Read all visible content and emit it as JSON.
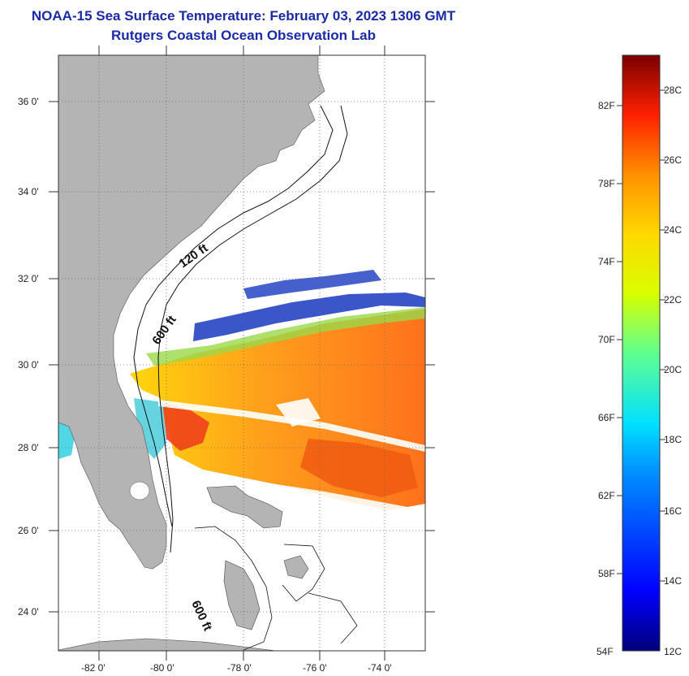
{
  "title": "NOAA-15 Sea Surface Temperature:  February 03, 2023 1306 GMT",
  "subtitle": "Rutgers Coastal Ocean Observation Lab",
  "map": {
    "lon_labels": [
      "-82 0'",
      "-80 0'",
      "-78 0'",
      "-76 0'",
      "-74 0'"
    ],
    "lat_labels": [
      "36 0'",
      "34 0'",
      "32 0'",
      "30 0'",
      "28 0'",
      "26 0'",
      "24 0'"
    ],
    "contour_labels": [
      "120 ft",
      "600 ft",
      "600 ft"
    ],
    "land_color": "#b4b4b4",
    "grid": true
  },
  "colorbar": {
    "fahrenheit_labels": [
      "82F",
      "78F",
      "74F",
      "70F",
      "66F",
      "62F",
      "58F",
      "54F"
    ],
    "celsius_labels": [
      "28C",
      "26C",
      "24C",
      "22C",
      "20C",
      "18C",
      "16C",
      "14C",
      "12C"
    ],
    "min_c": 12,
    "max_c": 29
  }
}
